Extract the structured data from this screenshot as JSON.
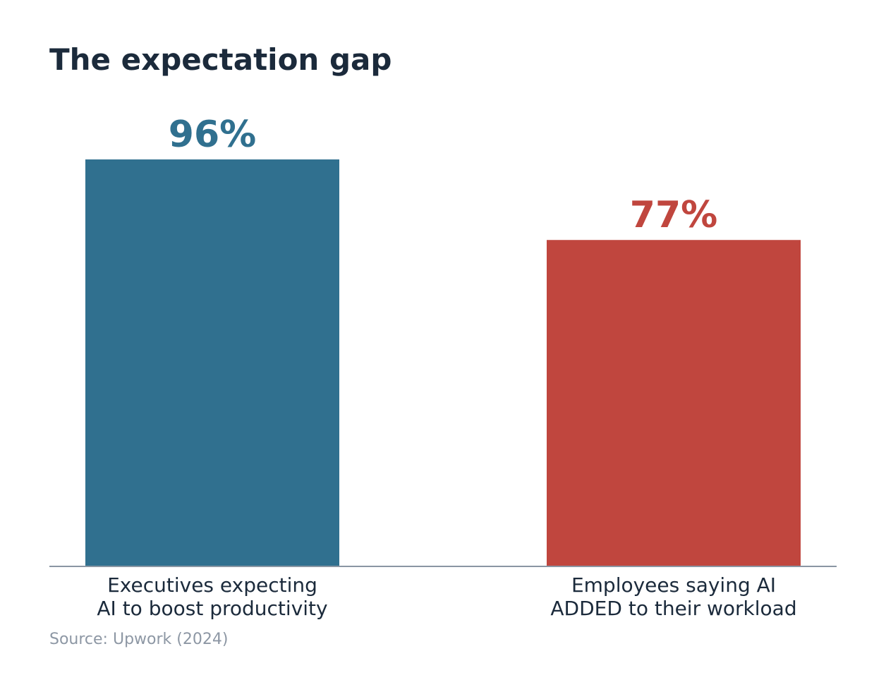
{
  "chart_data": {
    "type": "bar",
    "title": "The expectation gap",
    "categories": [
      [
        "Executives expecting",
        "AI to boost productivity"
      ],
      [
        "Employees saying AI",
        "ADDED to their workload"
      ]
    ],
    "values": [
      96,
      77
    ],
    "value_labels": [
      "96%",
      "77%"
    ],
    "colors": [
      "#30708f",
      "#c0463e"
    ],
    "ylim": [
      0,
      100
    ],
    "grid": false,
    "legend": "none",
    "source": "Source: Upwork (2024)"
  }
}
